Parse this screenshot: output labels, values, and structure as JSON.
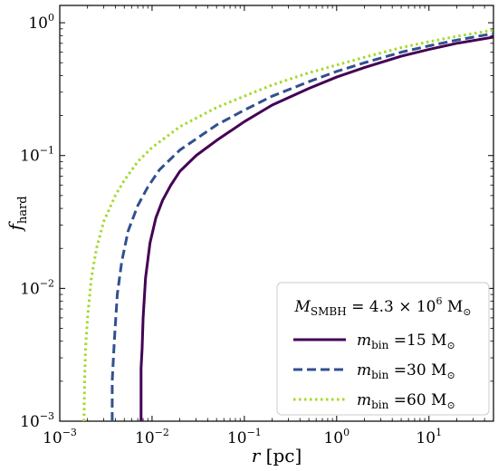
{
  "chart_data": {
    "type": "line",
    "xscale": "log",
    "yscale": "log",
    "xlim": [
      0.001,
      50
    ],
    "ylim": [
      0.001,
      1.35
    ],
    "xlabel": {
      "var": "r",
      "unit": " [pc]"
    },
    "ylabel": {
      "var": "f",
      "sub": "hard"
    },
    "x_ticks": [
      {
        "value": 0.001,
        "base": "10",
        "exp": "−3"
      },
      {
        "value": 0.01,
        "base": "10",
        "exp": "−2"
      },
      {
        "value": 0.1,
        "base": "10",
        "exp": "−1"
      },
      {
        "value": 1,
        "base": "10",
        "exp": "0"
      },
      {
        "value": 10,
        "base": "10",
        "exp": "1"
      }
    ],
    "y_ticks": [
      {
        "value": 0.001,
        "base": "10",
        "exp": "−3"
      },
      {
        "value": 0.01,
        "base": "10",
        "exp": "−2"
      },
      {
        "value": 0.1,
        "base": "10",
        "exp": "−1"
      },
      {
        "value": 1,
        "base": "10",
        "exp": "0"
      }
    ],
    "legend": {
      "location": "lower right",
      "title": {
        "var": "M",
        "sub": "SMBH",
        "text": " = 4.3 × 10",
        "exp": "6",
        "unit": " M",
        "unit_sub": "⊙"
      }
    },
    "series": [
      {
        "name": "mbin15",
        "label": {
          "var": "m",
          "sub": "bin",
          "text": " =15 M",
          "unit_sub": "⊙"
        },
        "color": "#440154",
        "dash": "solid",
        "points": [
          [
            0.0076,
            0.001
          ],
          [
            0.0076,
            0.0025
          ],
          [
            0.0078,
            0.0035
          ],
          [
            0.008,
            0.006
          ],
          [
            0.0085,
            0.012
          ],
          [
            0.0095,
            0.022
          ],
          [
            0.011,
            0.034
          ],
          [
            0.013,
            0.046
          ],
          [
            0.016,
            0.06
          ],
          [
            0.02,
            0.076
          ],
          [
            0.03,
            0.1
          ],
          [
            0.05,
            0.13
          ],
          [
            0.1,
            0.18
          ],
          [
            0.2,
            0.24
          ],
          [
            0.5,
            0.32
          ],
          [
            1,
            0.39
          ],
          [
            2,
            0.46
          ],
          [
            5,
            0.56
          ],
          [
            10,
            0.63
          ],
          [
            20,
            0.7
          ],
          [
            50,
            0.78
          ]
        ]
      },
      {
        "name": "mbin30",
        "label": {
          "var": "m",
          "sub": "bin",
          "text": " =30 M",
          "unit_sub": "⊙"
        },
        "color": "#31508f",
        "dash": "dashed",
        "points": [
          [
            0.0037,
            0.001
          ],
          [
            0.0037,
            0.002
          ],
          [
            0.0039,
            0.004
          ],
          [
            0.0042,
            0.009
          ],
          [
            0.0047,
            0.016
          ],
          [
            0.0055,
            0.027
          ],
          [
            0.007,
            0.042
          ],
          [
            0.009,
            0.058
          ],
          [
            0.012,
            0.078
          ],
          [
            0.02,
            0.11
          ],
          [
            0.05,
            0.17
          ],
          [
            0.1,
            0.22
          ],
          [
            0.2,
            0.28
          ],
          [
            0.5,
            0.36
          ],
          [
            1,
            0.43
          ],
          [
            2,
            0.5
          ],
          [
            5,
            0.6
          ],
          [
            10,
            0.67
          ],
          [
            20,
            0.74
          ],
          [
            50,
            0.83
          ]
        ]
      },
      {
        "name": "mbin60",
        "label": {
          "var": "m",
          "sub": "bin",
          "text": " =60 M",
          "unit_sub": "⊙"
        },
        "color": "#a3d92a",
        "dash": "dotted",
        "points": [
          [
            0.00183,
            0.001
          ],
          [
            0.00186,
            0.002
          ],
          [
            0.0019,
            0.0035
          ],
          [
            0.002,
            0.006
          ],
          [
            0.0022,
            0.012
          ],
          [
            0.0025,
            0.02
          ],
          [
            0.003,
            0.032
          ],
          [
            0.004,
            0.05
          ],
          [
            0.005,
            0.065
          ],
          [
            0.007,
            0.09
          ],
          [
            0.01,
            0.115
          ],
          [
            0.02,
            0.165
          ],
          [
            0.05,
            0.23
          ],
          [
            0.1,
            0.28
          ],
          [
            0.2,
            0.34
          ],
          [
            0.5,
            0.42
          ],
          [
            1,
            0.48
          ],
          [
            2,
            0.55
          ],
          [
            5,
            0.65
          ],
          [
            10,
            0.72
          ],
          [
            20,
            0.79
          ],
          [
            50,
            0.88
          ]
        ]
      }
    ]
  }
}
